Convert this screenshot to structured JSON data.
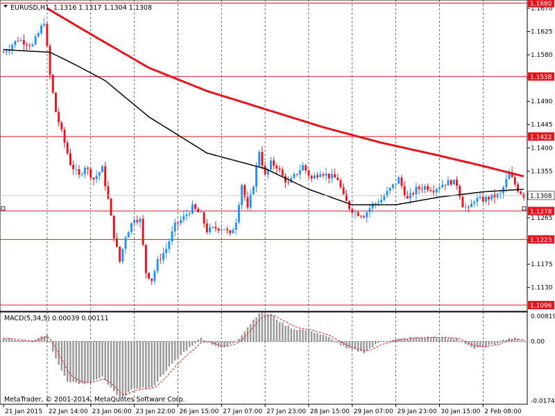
{
  "header": {
    "symbol_label": "EURUSD,H1",
    "ohlc": "1.1316 1.1317 1.1304 1.1308"
  },
  "footer": {
    "copyright": "MetaTrader, © 2001-2014, MetaQuotes Software Corp."
  },
  "colors": {
    "bull": "#1e90ff",
    "bear": "#e8131a",
    "hline": "#e8131a",
    "red_ma": "#e8131a",
    "black_ma": "#000000",
    "grid": "#000000",
    "macd_hist": "#9a9a9a",
    "macd_signal": "#e8131a",
    "price_label_bg": "#e8131a",
    "current_price_bg": "#ffffff"
  },
  "chart_data": [
    {
      "type": "candlestick",
      "symbol": "EURUSD",
      "timeframe": "H1",
      "ylim": [
        1.1084,
        1.1686
      ],
      "y_ticks": [
        "1.1670",
        "1.1625",
        "1.1580",
        "1.1535",
        "1.1490",
        "1.1445",
        "1.1400",
        "1.1355",
        "1.1310",
        "1.1265",
        "1.1220",
        "1.1175",
        "1.1130"
      ],
      "x_ticks": [
        "21 Jan 2015",
        "22 Jan 14:00",
        "23 Jan 06:00",
        "23 Jan 22:00",
        "26 Jan 15:00",
        "27 Jan 07:00",
        "27 Jan 23:00",
        "28 Jan 15:00",
        "29 Jan 07:00",
        "29 Jan 23:00",
        "30 Jan 15:00",
        "2 Feb 08:00"
      ],
      "horizontal_levels": [
        "1.1680",
        "1.1538",
        "1.1422",
        "1.1278",
        "1.1223",
        "1.1096"
      ],
      "current_price": "1.1308",
      "anchor_points": [
        {
          "x": 0,
          "y": 1.1585
        },
        {
          "x": 5,
          "y": 1.161
        },
        {
          "x": 10,
          "y": 1.1598
        },
        {
          "x": 14,
          "y": 1.1645
        },
        {
          "x": 16,
          "y": 1.154
        },
        {
          "x": 18,
          "y": 1.147
        },
        {
          "x": 20,
          "y": 1.143
        },
        {
          "x": 23,
          "y": 1.137
        },
        {
          "x": 26,
          "y": 1.1345
        },
        {
          "x": 28,
          "y": 1.1365
        },
        {
          "x": 31,
          "y": 1.134
        },
        {
          "x": 34,
          "y": 1.136
        },
        {
          "x": 36,
          "y": 1.13
        },
        {
          "x": 38,
          "y": 1.123
        },
        {
          "x": 40,
          "y": 1.118
        },
        {
          "x": 42,
          "y": 1.123
        },
        {
          "x": 45,
          "y": 1.1265
        },
        {
          "x": 47,
          "y": 1.126
        },
        {
          "x": 49,
          "y": 1.116
        },
        {
          "x": 51,
          "y": 1.1145
        },
        {
          "x": 53,
          "y": 1.118
        },
        {
          "x": 56,
          "y": 1.1205
        },
        {
          "x": 59,
          "y": 1.125
        },
        {
          "x": 62,
          "y": 1.1265
        },
        {
          "x": 65,
          "y": 1.1285
        },
        {
          "x": 68,
          "y": 1.127
        },
        {
          "x": 70,
          "y": 1.124
        },
        {
          "x": 73,
          "y": 1.1245
        },
        {
          "x": 76,
          "y": 1.1245
        },
        {
          "x": 78,
          "y": 1.123
        },
        {
          "x": 80,
          "y": 1.126
        },
        {
          "x": 82,
          "y": 1.133
        },
        {
          "x": 84,
          "y": 1.128
        },
        {
          "x": 86,
          "y": 1.133
        },
        {
          "x": 88,
          "y": 1.1395
        },
        {
          "x": 90,
          "y": 1.1345
        },
        {
          "x": 92,
          "y": 1.137
        },
        {
          "x": 94,
          "y": 1.1365
        },
        {
          "x": 96,
          "y": 1.1345
        },
        {
          "x": 98,
          "y": 1.133
        },
        {
          "x": 100,
          "y": 1.1345
        },
        {
          "x": 103,
          "y": 1.1365
        },
        {
          "x": 106,
          "y": 1.134
        },
        {
          "x": 109,
          "y": 1.1355
        },
        {
          "x": 112,
          "y": 1.1345
        },
        {
          "x": 115,
          "y": 1.134
        },
        {
          "x": 117,
          "y": 1.1305
        },
        {
          "x": 119,
          "y": 1.1285
        },
        {
          "x": 121,
          "y": 1.1275
        },
        {
          "x": 124,
          "y": 1.127
        },
        {
          "x": 127,
          "y": 1.129
        },
        {
          "x": 130,
          "y": 1.13
        },
        {
          "x": 133,
          "y": 1.132
        },
        {
          "x": 136,
          "y": 1.134
        },
        {
          "x": 139,
          "y": 1.13
        },
        {
          "x": 142,
          "y": 1.132
        },
        {
          "x": 145,
          "y": 1.1325
        },
        {
          "x": 148,
          "y": 1.132
        },
        {
          "x": 151,
          "y": 1.133
        },
        {
          "x": 154,
          "y": 1.1335
        },
        {
          "x": 156,
          "y": 1.133
        },
        {
          "x": 158,
          "y": 1.129
        },
        {
          "x": 160,
          "y": 1.128
        },
        {
          "x": 162,
          "y": 1.13
        },
        {
          "x": 165,
          "y": 1.13
        },
        {
          "x": 168,
          "y": 1.1305
        },
        {
          "x": 171,
          "y": 1.131
        },
        {
          "x": 174,
          "y": 1.135
        },
        {
          "x": 177,
          "y": 1.132
        },
        {
          "x": 179,
          "y": 1.1308
        }
      ],
      "red_ma": [
        {
          "x": 15,
          "y": 1.167
        },
        {
          "x": 30,
          "y": 1.162
        },
        {
          "x": 50,
          "y": 1.1555
        },
        {
          "x": 70,
          "y": 1.151
        },
        {
          "x": 90,
          "y": 1.1475
        },
        {
          "x": 110,
          "y": 1.144
        },
        {
          "x": 130,
          "y": 1.141
        },
        {
          "x": 150,
          "y": 1.1385
        },
        {
          "x": 165,
          "y": 1.1365
        },
        {
          "x": 179,
          "y": 1.1345
        }
      ],
      "black_ma": [
        {
          "x": 0,
          "y": 1.159
        },
        {
          "x": 16,
          "y": 1.1585
        },
        {
          "x": 25,
          "y": 1.156
        },
        {
          "x": 35,
          "y": 1.153
        },
        {
          "x": 50,
          "y": 1.146
        },
        {
          "x": 70,
          "y": 1.139
        },
        {
          "x": 90,
          "y": 1.136
        },
        {
          "x": 105,
          "y": 1.132
        },
        {
          "x": 120,
          "y": 1.129
        },
        {
          "x": 135,
          "y": 1.129
        },
        {
          "x": 150,
          "y": 1.1305
        },
        {
          "x": 165,
          "y": 1.1315
        },
        {
          "x": 179,
          "y": 1.132
        }
      ]
    },
    {
      "type": "bar",
      "indicator_label": "MACD(5,34,5) 0.00039 0.00111",
      "ylim": [
        -0.01744,
        0.00819
      ],
      "y_ticks": [
        "0.00819",
        "0.00",
        "-0.01744"
      ],
      "anchor_points": [
        {
          "x": 0,
          "y": 0.001
        },
        {
          "x": 10,
          "y": 0.0
        },
        {
          "x": 15,
          "y": 0.002
        },
        {
          "x": 18,
          "y": -0.005
        },
        {
          "x": 22,
          "y": -0.011
        },
        {
          "x": 28,
          "y": -0.012
        },
        {
          "x": 34,
          "y": -0.01
        },
        {
          "x": 40,
          "y": -0.016
        },
        {
          "x": 45,
          "y": -0.013
        },
        {
          "x": 51,
          "y": -0.013
        },
        {
          "x": 56,
          "y": -0.008
        },
        {
          "x": 62,
          "y": -0.003
        },
        {
          "x": 68,
          "y": 0.001
        },
        {
          "x": 75,
          "y": -0.002
        },
        {
          "x": 80,
          "y": 0.0
        },
        {
          "x": 84,
          "y": 0.004
        },
        {
          "x": 88,
          "y": 0.008
        },
        {
          "x": 92,
          "y": 0.0075
        },
        {
          "x": 96,
          "y": 0.005
        },
        {
          "x": 100,
          "y": 0.0035
        },
        {
          "x": 106,
          "y": 0.003
        },
        {
          "x": 112,
          "y": 0.001
        },
        {
          "x": 118,
          "y": -0.002
        },
        {
          "x": 124,
          "y": -0.003
        },
        {
          "x": 130,
          "y": 0.0
        },
        {
          "x": 140,
          "y": 0.001
        },
        {
          "x": 148,
          "y": 0.0012
        },
        {
          "x": 156,
          "y": 0.0008
        },
        {
          "x": 162,
          "y": -0.002
        },
        {
          "x": 168,
          "y": -0.001
        },
        {
          "x": 174,
          "y": 0.001
        },
        {
          "x": 179,
          "y": 0.0004
        }
      ]
    }
  ]
}
